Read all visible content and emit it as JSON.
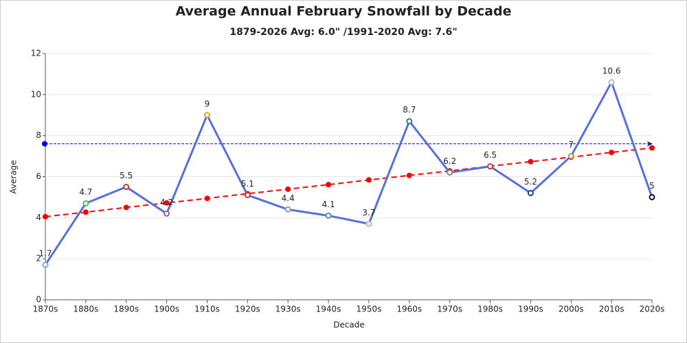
{
  "chart_data": {
    "type": "line",
    "title": "Average Annual February Snowfall by Decade",
    "subtitle": "1879-2026 Avg: 6.0\" /1991-2020 Avg: 7.6\"",
    "x_label": "Decade",
    "y_label": "Average",
    "categories": [
      "1870s",
      "1880s",
      "1890s",
      "1900s",
      "1910s",
      "1920s",
      "1930s",
      "1940s",
      "1950s",
      "1960s",
      "1970s",
      "1980s",
      "1990s",
      "2000s",
      "2010s",
      "2020s"
    ],
    "series": [
      {
        "color": "#5470dc",
        "values": [
          1.7,
          4.7,
          5.5,
          4.2,
          9,
          5.1,
          4.4,
          4.1,
          3.7,
          8.7,
          6.2,
          6.5,
          5.2,
          7,
          10.6,
          5
        ],
        "marker_colors": [
          "#7fa7e0",
          "#5cb85c",
          "#c0392b",
          "#9b59b6",
          "#f39c12",
          "#c0392b",
          "#999999",
          "#4a9a9a",
          "#e8a0b0",
          "#2f7f7f",
          "#888888",
          "#c04040",
          "#1a3aa0",
          "#c09040",
          "#b0b8d8",
          "#111111"
        ],
        "data_labels": true
      },
      {
        "color": "#ff0000",
        "dashed": true,
        "markers": "filled",
        "values": [
          4.05,
          4.27,
          4.5,
          4.72,
          4.94,
          5.17,
          5.39,
          5.61,
          5.84,
          6.06,
          6.28,
          6.51,
          6.73,
          6.95,
          7.18,
          7.4
        ]
      }
    ],
    "reference_line": {
      "value": 7.6,
      "color": "#0000ff"
    },
    "ylim": [
      0,
      12
    ],
    "yticks": [
      0,
      2,
      4,
      6,
      8,
      10,
      12
    ],
    "grid": true
  }
}
